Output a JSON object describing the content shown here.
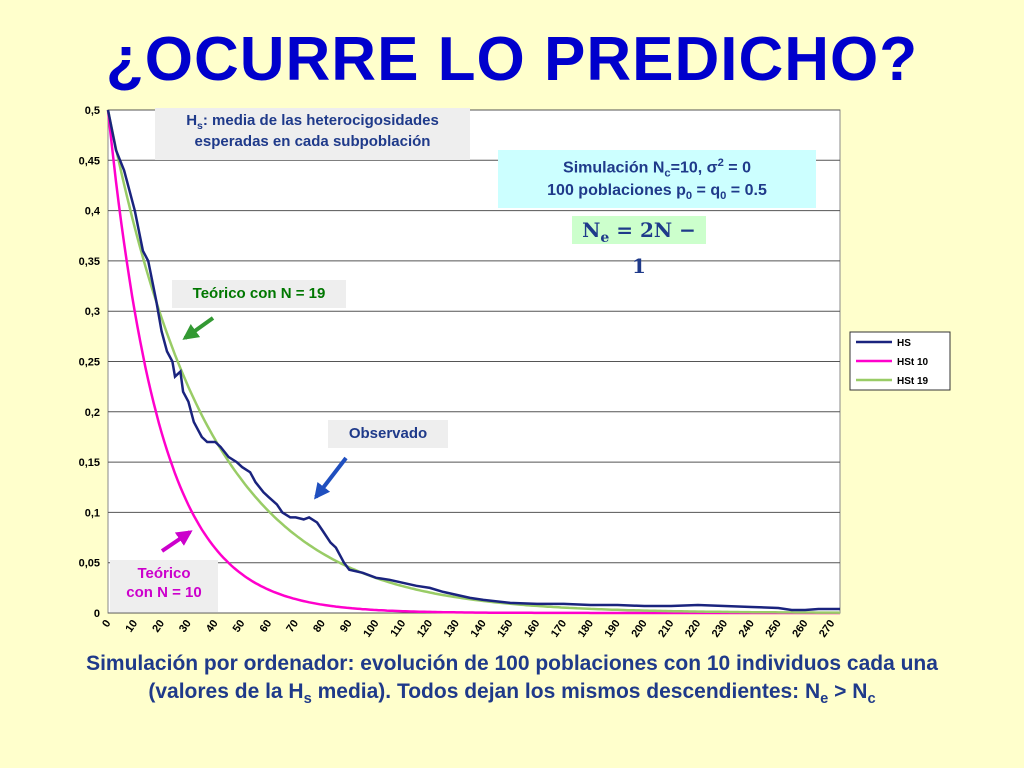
{
  "title": "¿OCURRE LO PREDICHO?",
  "annotations": {
    "hs_prefix": "H",
    "hs_sub": "s",
    "hs_line1_rest": ": media de las heterocigosidades",
    "hs_line2": "esperadas en cada subpoblación",
    "sim_line1_a": "Simulación N",
    "sim_line1_sub": "c",
    "sim_line1_b": "=10, σ",
    "sim_line1_sup": "2",
    "sim_line1_c": " = 0",
    "sim_line2_a": "100 poblaciones p",
    "sim_line2_sub1": "0",
    "sim_line2_b": " = q",
    "sim_line2_sub2": "0",
    "sim_line2_c": " = 0.5",
    "ne_formula_a": "N",
    "ne_formula_sub": "e",
    "ne_formula_b": " = 2N − 1",
    "teorico19": "Teórico con N = 19",
    "observado": "Observado",
    "teorico10_line1": "Teórico",
    "teorico10_line2": "con N = 10"
  },
  "caption": {
    "line1": "Simulación por ordenador: evolución de 100 poblaciones con 10 individuos cada una",
    "line2_a": "(valores de la H",
    "line2_sub1": "s",
    "line2_b": " media). Todos dejan los mismos descendientes: N",
    "line2_sub2": "e",
    "line2_c": " > N",
    "line2_sub3": "c"
  },
  "colors": {
    "title": "#0000cc",
    "hs": "#1a237e",
    "hst10": "#ff00cc",
    "hst19": "#99cc66",
    "arrow_green": "#339933",
    "arrow_blue": "#1f4fbf",
    "arrow_magenta": "#cc00cc"
  },
  "chart_data": {
    "type": "line",
    "xlim": [
      0,
      273
    ],
    "ylim": [
      0,
      0.5
    ],
    "x_ticks": [
      0,
      10,
      20,
      30,
      40,
      50,
      60,
      70,
      80,
      90,
      100,
      110,
      120,
      130,
      140,
      150,
      160,
      170,
      180,
      190,
      200,
      210,
      220,
      230,
      240,
      250,
      260,
      270
    ],
    "y_ticks": [
      "0",
      "0,05",
      "0,1",
      "0,15",
      "0,2",
      "0,25",
      "0,3",
      "0,35",
      "0,4",
      "0,45",
      "0,5"
    ],
    "grid": "horizontal",
    "legend_position": "right",
    "series": [
      {
        "name": "HS",
        "color": "#1a237e",
        "x": [
          0,
          3,
          6,
          10,
          13,
          15,
          18,
          20,
          22,
          24,
          25,
          27,
          28,
          30,
          32,
          35,
          37,
          40,
          42,
          45,
          48,
          50,
          53,
          55,
          58,
          60,
          63,
          65,
          68,
          70,
          73,
          75,
          78,
          80,
          83,
          85,
          88,
          90,
          95,
          100,
          105,
          110,
          115,
          120,
          125,
          130,
          135,
          140,
          150,
          160,
          170,
          180,
          190,
          200,
          210,
          220,
          230,
          240,
          250,
          255,
          260,
          265,
          270,
          273
        ],
        "y": [
          0.5,
          0.46,
          0.44,
          0.4,
          0.36,
          0.35,
          0.31,
          0.28,
          0.26,
          0.25,
          0.235,
          0.24,
          0.22,
          0.21,
          0.19,
          0.175,
          0.17,
          0.17,
          0.165,
          0.155,
          0.15,
          0.145,
          0.14,
          0.13,
          0.12,
          0.115,
          0.108,
          0.1,
          0.095,
          0.095,
          0.093,
          0.095,
          0.09,
          0.082,
          0.07,
          0.065,
          0.05,
          0.043,
          0.04,
          0.035,
          0.033,
          0.03,
          0.027,
          0.025,
          0.021,
          0.018,
          0.015,
          0.013,
          0.01,
          0.009,
          0.009,
          0.008,
          0.008,
          0.007,
          0.007,
          0.008,
          0.007,
          0.006,
          0.005,
          0.003,
          0.003,
          0.004,
          0.004,
          0.004
        ]
      },
      {
        "name": "HSt 10",
        "color": "#ff00cc",
        "N": 10
      },
      {
        "name": "HSt 19",
        "color": "#99cc66",
        "N": 19
      }
    ]
  }
}
